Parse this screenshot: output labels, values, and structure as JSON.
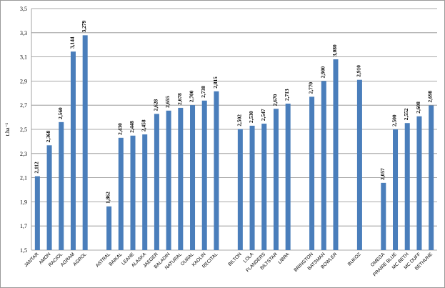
{
  "chart_data": {
    "type": "bar",
    "title": "",
    "xlabel": "",
    "ylabel": "t.ha⁻¹",
    "ylim": [
      1.5,
      3.5
    ],
    "yticks": [
      "1,5",
      "1,7",
      "1,9",
      "2,1",
      "2,3",
      "2,5",
      "2,7",
      "2,9",
      "3,1",
      "3,3",
      "3,5"
    ],
    "grid": true,
    "legend": "none",
    "bar_color": "#4a7ebb",
    "categories": [
      "JANTAR",
      "AMON",
      "RACIOL",
      "AGRAM",
      "AGROL",
      "",
      "ASTRAL",
      "BAIKAL",
      "LEANE",
      "ALASKA",
      "JAEGER",
      "BALADIN",
      "NATURAL",
      "OURAL",
      "KAOLIN",
      "RECITAL",
      "",
      "BILTON",
      "LOLA",
      "FLANDERS",
      "BILTSTAR",
      "LIBRA",
      "",
      "BRINGTON",
      "BATSMAN",
      "BOWLER",
      "",
      "BUKOZ",
      "",
      "OMEGA",
      "PRAIRE BLUE",
      "MC BETH",
      "MC DUFF",
      "BETHUNE"
    ],
    "values": [
      2.112,
      2.368,
      2.56,
      3.144,
      3.279,
      null,
      1.862,
      2.43,
      2.448,
      2.458,
      2.628,
      2.655,
      2.678,
      2.7,
      2.738,
      2.815,
      null,
      2.502,
      2.53,
      2.547,
      2.67,
      2.713,
      null,
      2.77,
      2.9,
      3.08,
      null,
      2.91,
      null,
      2.057,
      2.5,
      2.552,
      2.608,
      2.698
    ],
    "data_labels": [
      "2,112",
      "2,368",
      "2,560",
      "3,144",
      "3,279",
      "",
      "1,862",
      "2,430",
      "2,448",
      "2,458",
      "2,628",
      "2,655",
      "2,678",
      "2,700",
      "2,738",
      "2,815",
      "",
      "2,502",
      "2,530",
      "2,547",
      "2,670",
      "2,713",
      "",
      "2,770",
      "2,900",
      "3,080",
      "",
      "2,910",
      "",
      "2,057",
      "2,500",
      "2,552",
      "2,608",
      "2,698"
    ]
  }
}
